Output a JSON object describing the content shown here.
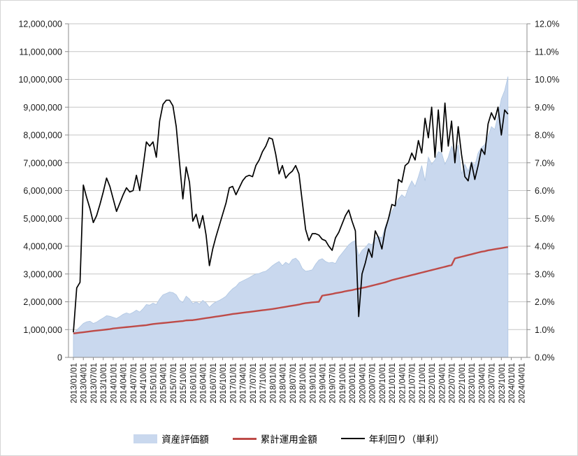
{
  "window": {
    "background": "#FFFFFF",
    "border_color": "#D5D5D5"
  },
  "legend": {
    "position": "bottom",
    "items": [
      {
        "label": "資産評価額",
        "type": "area",
        "color": "#C9D8EE"
      },
      {
        "label": "累計運用金額",
        "type": "line",
        "color": "#BE4B48"
      },
      {
        "label": "年利回り（単利）",
        "type": "line",
        "color": "#000000"
      }
    ]
  },
  "chart_data": {
    "type": "combo",
    "title": "",
    "xlabel": "",
    "ylabel": "",
    "grid": true,
    "legend_position": "bottom",
    "x": {
      "unit": "month",
      "start": "2013/01",
      "end": "2023/12",
      "count": 132,
      "tick_labels": [
        "2013/01/01",
        "2013/04/01",
        "2013/07/01",
        "2013/10/01",
        "2014/01/01",
        "2014/04/01",
        "2014/07/01",
        "2014/10/01",
        "2015/01/01",
        "2015/04/01",
        "2015/07/01",
        "2015/10/01",
        "2016/01/01",
        "2016/04/01",
        "2016/07/01",
        "2016/10/01",
        "2017/01/01",
        "2017/04/01",
        "2017/07/01",
        "2017/10/01",
        "2018/01/01",
        "2018/04/01",
        "2018/07/01",
        "2018/10/01",
        "2019/01/01",
        "2019/04/01",
        "2019/07/01",
        "2019/10/01",
        "2020/01/01",
        "2020/04/01",
        "2020/07/01",
        "2020/10/01",
        "2021/01/01",
        "2021/04/01",
        "2021/07/01",
        "2021/10/01",
        "2022/01/01",
        "2022/04/01",
        "2022/07/01",
        "2022/10/01",
        "2023/01/01",
        "2023/04/01",
        "2023/07/01",
        "2023/10/01",
        "2024/01/01",
        "2024/04/01"
      ]
    },
    "left_axis": {
      "min": 0,
      "max": 12000000,
      "step": 1000000,
      "tick_labels": [
        "0",
        "1,000,000",
        "2,000,000",
        "3,000,000",
        "4,000,000",
        "5,000,000",
        "6,000,000",
        "7,000,000",
        "8,000,000",
        "9,000,000",
        "10,000,000",
        "11,000,000",
        "12,000,000"
      ]
    },
    "right_axis": {
      "min": 0,
      "max": 12,
      "step": 1,
      "tick_labels": [
        "0.0%",
        "1.0%",
        "2.0%",
        "3.0%",
        "4.0%",
        "5.0%",
        "6.0%",
        "7.0%",
        "8.0%",
        "9.0%",
        "10.0%",
        "11.0%",
        "12.0%"
      ]
    },
    "series": [
      {
        "name": "資産評価額",
        "type": "area",
        "axis": "left",
        "color": "#C9D8EE",
        "edge_color": "#AFC6E2",
        "values": [
          870000,
          980000,
          1100000,
          1220000,
          1280000,
          1300000,
          1220000,
          1270000,
          1350000,
          1420000,
          1500000,
          1480000,
          1440000,
          1400000,
          1470000,
          1550000,
          1600000,
          1560000,
          1620000,
          1700000,
          1630000,
          1750000,
          1900000,
          1880000,
          1950000,
          1900000,
          2100000,
          2250000,
          2300000,
          2350000,
          2330000,
          2250000,
          2050000,
          1980000,
          2200000,
          2100000,
          1930000,
          2000000,
          1920000,
          2050000,
          1960000,
          1800000,
          1920000,
          2000000,
          2050000,
          2120000,
          2200000,
          2350000,
          2470000,
          2550000,
          2690000,
          2750000,
          2810000,
          2870000,
          2940000,
          3000000,
          3020000,
          3070000,
          3100000,
          3190000,
          3300000,
          3380000,
          3450000,
          3300000,
          3420000,
          3350000,
          3520000,
          3570000,
          3450000,
          3200000,
          3100000,
          3120000,
          3150000,
          3350000,
          3500000,
          3550000,
          3450000,
          3400000,
          3420000,
          3380000,
          3600000,
          3750000,
          3900000,
          4050000,
          4150000,
          4200000,
          3650000,
          3850000,
          3950000,
          4100000,
          4050000,
          4300000,
          4350000,
          4300000,
          4700000,
          5000000,
          5250000,
          5450000,
          5700000,
          5850000,
          5750000,
          6100000,
          6350000,
          6150000,
          6500000,
          6900000,
          6350000,
          7200000,
          6950000,
          7100000,
          7400000,
          7350000,
          6950000,
          7200000,
          7600000,
          7300000,
          7650000,
          6600000,
          6950000,
          6700000,
          7050000,
          6900000,
          7350000,
          7550000,
          7650000,
          7950000,
          8300000,
          8200000,
          8700000,
          9300000,
          9600000,
          10100000
        ]
      },
      {
        "name": "累計運用金額",
        "type": "line",
        "axis": "left",
        "color": "#BE4B48",
        "values": [
          860000,
          875000,
          890000,
          905000,
          920000,
          935000,
          950000,
          963000,
          976000,
          990000,
          1003000,
          1016000,
          1040000,
          1052000,
          1064000,
          1076000,
          1088000,
          1100000,
          1112000,
          1124000,
          1136000,
          1148000,
          1160000,
          1180000,
          1200000,
          1212000,
          1224000,
          1236000,
          1248000,
          1260000,
          1272000,
          1284000,
          1296000,
          1308000,
          1330000,
          1335000,
          1340000,
          1358000,
          1376000,
          1394000,
          1412000,
          1430000,
          1448000,
          1466000,
          1484000,
          1502000,
          1520000,
          1540000,
          1560000,
          1575000,
          1590000,
          1605000,
          1620000,
          1635000,
          1650000,
          1665000,
          1680000,
          1695000,
          1710000,
          1725000,
          1740000,
          1760000,
          1780000,
          1800000,
          1820000,
          1840000,
          1860000,
          1880000,
          1900000,
          1930000,
          1950000,
          1965000,
          1980000,
          1990000,
          2000000,
          2220000,
          2240000,
          2260000,
          2280000,
          2310000,
          2330000,
          2350000,
          2380000,
          2400000,
          2420000,
          2450000,
          2470000,
          2500000,
          2520000,
          2550000,
          2580000,
          2610000,
          2640000,
          2670000,
          2700000,
          2740000,
          2780000,
          2810000,
          2840000,
          2870000,
          2900000,
          2930000,
          2960000,
          2990000,
          3020000,
          3050000,
          3080000,
          3110000,
          3140000,
          3170000,
          3200000,
          3230000,
          3260000,
          3290000,
          3320000,
          3560000,
          3590000,
          3620000,
          3650000,
          3680000,
          3710000,
          3740000,
          3770000,
          3800000,
          3820000,
          3850000,
          3870000,
          3890000,
          3910000,
          3930000,
          3950000,
          3970000
        ]
      },
      {
        "name": "年利回り（単利）",
        "type": "line",
        "axis": "right",
        "color": "#000000",
        "values": [
          0.9,
          2.5,
          2.7,
          6.2,
          5.75,
          5.35,
          4.85,
          5.1,
          5.5,
          5.95,
          6.45,
          6.15,
          5.7,
          5.25,
          5.55,
          5.85,
          6.1,
          5.95,
          6.0,
          6.55,
          6.0,
          6.85,
          7.75,
          7.6,
          7.75,
          7.2,
          8.5,
          9.1,
          9.25,
          9.25,
          9.05,
          8.3,
          7.0,
          5.7,
          6.85,
          6.3,
          4.9,
          5.15,
          4.65,
          5.1,
          4.4,
          3.3,
          3.9,
          4.35,
          4.75,
          5.15,
          5.55,
          6.1,
          6.15,
          5.85,
          6.1,
          6.35,
          6.5,
          6.55,
          6.5,
          6.9,
          7.1,
          7.4,
          7.6,
          7.9,
          7.85,
          7.3,
          6.6,
          6.9,
          6.45,
          6.6,
          6.7,
          6.9,
          6.6,
          5.6,
          4.6,
          4.2,
          4.45,
          4.45,
          4.4,
          4.25,
          4.2,
          4.0,
          3.85,
          4.3,
          4.5,
          4.8,
          5.1,
          5.3,
          4.9,
          4.55,
          1.47,
          3.0,
          3.4,
          3.9,
          3.6,
          4.55,
          4.3,
          3.9,
          4.6,
          5.0,
          5.5,
          5.45,
          6.4,
          6.3,
          6.9,
          7.0,
          7.35,
          7.1,
          7.8,
          7.35,
          8.6,
          7.9,
          9.0,
          7.2,
          8.9,
          7.4,
          9.15,
          7.6,
          8.5,
          7.0,
          8.3,
          7.3,
          6.5,
          6.35,
          7.0,
          6.4,
          6.9,
          7.5,
          7.3,
          8.4,
          8.8,
          8.55,
          9.0,
          8.0,
          8.9,
          8.75
        ]
      }
    ],
    "style": {
      "gridline_color": "#C6C6C6",
      "axis_line_color": "#8C8C8C",
      "tick_label_color": "#1A1A1A"
    }
  }
}
